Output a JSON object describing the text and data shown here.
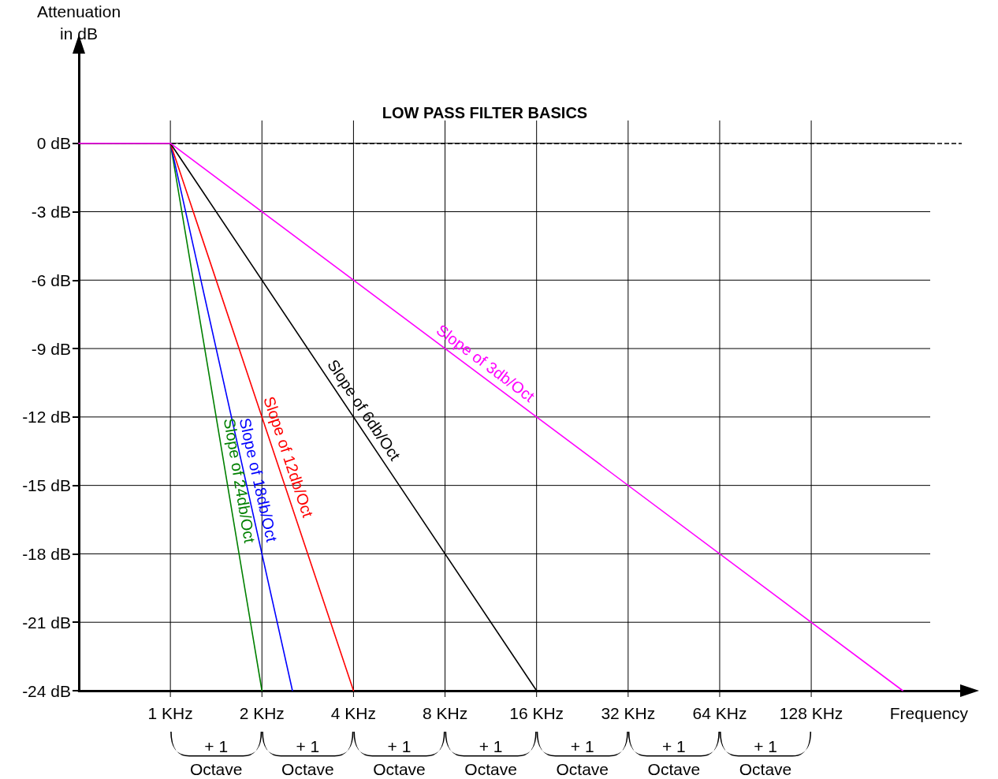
{
  "chart_data": {
    "type": "line",
    "title": "LOW PASS FILTER BASICS",
    "xlabel": "Frequency",
    "ylabel": "Attenuation\nin dB",
    "log": "x",
    "xlim": [
      0.5,
      400
    ],
    "ylim": [
      -24,
      4
    ],
    "xticks": [
      {
        "value": 1,
        "label": "1 KHz"
      },
      {
        "value": 2,
        "label": "2 KHz"
      },
      {
        "value": 4,
        "label": "4 KHz"
      },
      {
        "value": 8,
        "label": "8 KHz"
      },
      {
        "value": 16,
        "label": "16 KHz"
      },
      {
        "value": 32,
        "label": "32 KHz"
      },
      {
        "value": 64,
        "label": "64 KHz"
      },
      {
        "value": 128,
        "label": "128 KHz"
      }
    ],
    "yticks": [
      {
        "value": 0,
        "label": "0 dB"
      },
      {
        "value": -3,
        "label": "-3 dB"
      },
      {
        "value": -6,
        "label": "-6 dB"
      },
      {
        "value": -9,
        "label": "-9 dB"
      },
      {
        "value": -12,
        "label": "-12 dB"
      },
      {
        "value": -15,
        "label": "-15 dB"
      },
      {
        "value": -18,
        "label": "-18 dB"
      },
      {
        "value": -21,
        "label": "-21 dB"
      },
      {
        "value": -24,
        "label": "-24 dB"
      }
    ],
    "grid": true,
    "legend": false,
    "marker": "none",
    "ref_lines": [
      {
        "axis": "y",
        "value": 0,
        "color": "#000000",
        "line_style": "dashed"
      }
    ],
    "series": [
      {
        "name": "Slope of 24db/Oct",
        "color": "#008000",
        "x": [
          0.5,
          1,
          2
        ],
        "values": [
          0,
          0,
          -24
        ]
      },
      {
        "name": "Slope of 18db/Oct",
        "color": "#0000ff",
        "x": [
          0.5,
          1,
          2.52
        ],
        "values": [
          0,
          0,
          -24
        ]
      },
      {
        "name": "Slope of 12db/Oct",
        "color": "#ff0000",
        "x": [
          0.5,
          1,
          4
        ],
        "values": [
          0,
          0,
          -24
        ]
      },
      {
        "name": "Slope of 6db/Oct",
        "color": "#000000",
        "x": [
          0.5,
          1,
          16
        ],
        "values": [
          0,
          0,
          -24
        ]
      },
      {
        "name": "Slope of 3db/Oct",
        "color": "#ff00ff",
        "x": [
          0.5,
          1,
          256
        ],
        "values": [
          0,
          0,
          -24
        ]
      }
    ],
    "annotations": [
      "+ 1\nOctave",
      "+ 1\nOctave",
      "+ 1\nOctave",
      "+ 1\nOctave",
      "+ 1\nOctave",
      "+ 1\nOctave",
      "+ 1\nOctave"
    ]
  }
}
